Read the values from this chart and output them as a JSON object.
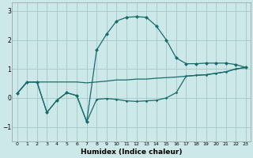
{
  "xlabel": "Humidex (Indice chaleur)",
  "bg_color": "#cce8e8",
  "grid_color": "#aacccc",
  "line_color": "#1a6b6b",
  "xlim": [
    -0.5,
    23.5
  ],
  "ylim": [
    -1.5,
    3.3
  ],
  "yticks": [
    -1,
    0,
    1,
    2,
    3
  ],
  "xticks": [
    0,
    1,
    2,
    3,
    4,
    5,
    6,
    7,
    8,
    9,
    10,
    11,
    12,
    13,
    14,
    15,
    16,
    17,
    18,
    19,
    20,
    21,
    22,
    23
  ],
  "line_flat_x": [
    0,
    1,
    2,
    3,
    4,
    5,
    6,
    7,
    8,
    9,
    10,
    11,
    12,
    13,
    14,
    15,
    16,
    17,
    18,
    19,
    20,
    21,
    22,
    23
  ],
  "line_flat_y": [
    0.15,
    0.55,
    0.55,
    0.55,
    0.55,
    0.55,
    0.55,
    0.52,
    0.55,
    0.58,
    0.62,
    0.62,
    0.65,
    0.65,
    0.68,
    0.7,
    0.72,
    0.75,
    0.78,
    0.8,
    0.85,
    0.9,
    1.0,
    1.05
  ],
  "line_low_x": [
    0,
    1,
    2,
    3,
    4,
    5,
    6,
    7,
    8,
    9,
    10,
    11,
    12,
    13,
    14,
    15,
    16,
    17,
    18,
    19,
    20,
    21,
    22,
    23
  ],
  "line_low_y": [
    0.15,
    0.55,
    0.55,
    -0.5,
    -0.08,
    0.18,
    0.08,
    -0.82,
    -0.05,
    -0.02,
    -0.05,
    -0.1,
    -0.12,
    -0.1,
    -0.08,
    0.0,
    0.18,
    0.75,
    0.78,
    0.8,
    0.85,
    0.9,
    1.0,
    1.05
  ],
  "line_main_x": [
    0,
    1,
    2,
    3,
    4,
    5,
    6,
    7,
    8,
    9,
    10,
    11,
    12,
    13,
    14,
    15,
    16,
    17,
    18,
    19,
    20,
    21,
    22,
    23
  ],
  "line_main_y": [
    0.15,
    0.55,
    0.55,
    -0.5,
    -0.08,
    0.18,
    0.08,
    -0.82,
    1.65,
    2.2,
    2.65,
    2.78,
    2.8,
    2.78,
    2.48,
    2.0,
    1.38,
    1.18,
    1.18,
    1.2,
    1.2,
    1.2,
    1.15,
    1.05
  ],
  "marker_indices": [
    0,
    1,
    2,
    3,
    4,
    5,
    6,
    7,
    8,
    9,
    10,
    11,
    12,
    13,
    14,
    15,
    16,
    17,
    18,
    19,
    20,
    21,
    22,
    23
  ]
}
